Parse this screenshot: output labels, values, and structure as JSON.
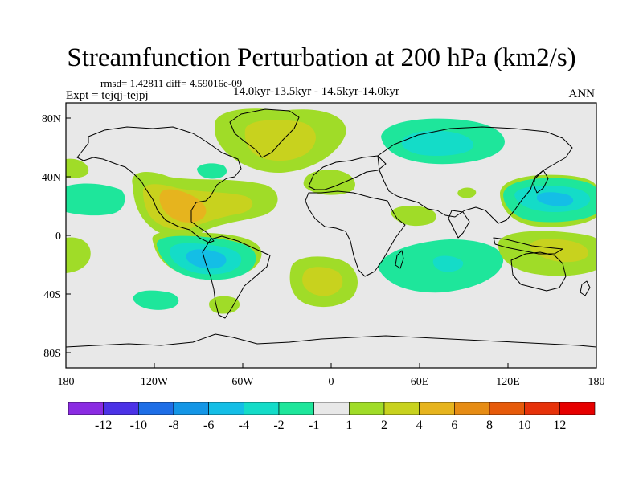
{
  "title": "Streamfunction Perturbation at 200 hPa (km2/s)",
  "stats": "rmsd= 1.42811 diff= 4.59016e-09",
  "experiment": "Expt = tejqj-tejpj",
  "period": "14.0kyr-13.5kyr - 14.5kyr-14.0kyr",
  "season": "ANN",
  "lat_labels": [
    "80N",
    "40N",
    "0",
    "40S",
    "80S"
  ],
  "lon_labels": [
    "180",
    "120W",
    "60W",
    "0",
    "60E",
    "120E",
    "180"
  ],
  "colorbar": {
    "labels": [
      "-12",
      "-10",
      "-8",
      "-6",
      "-4",
      "-2",
      "-1",
      "1",
      "2",
      "4",
      "6",
      "8",
      "10",
      "12"
    ],
    "colors": [
      "#8a2be2",
      "#4b32e6",
      "#1e6ee6",
      "#1496e6",
      "#14bee6",
      "#14dcc8",
      "#1ee69b",
      "#e8e8e8",
      "#a0dc28",
      "#c8d21e",
      "#e6b41e",
      "#e68c14",
      "#e65a0a",
      "#e6320a",
      "#e60000"
    ]
  },
  "map_colors": {
    "background": "#e8e8e8",
    "pos1": "#a0dc28",
    "pos2": "#c8d21e",
    "pos3": "#e6b41e",
    "neg1": "#1ee69b",
    "neg2": "#14dcc8",
    "neg3": "#14bee6"
  }
}
